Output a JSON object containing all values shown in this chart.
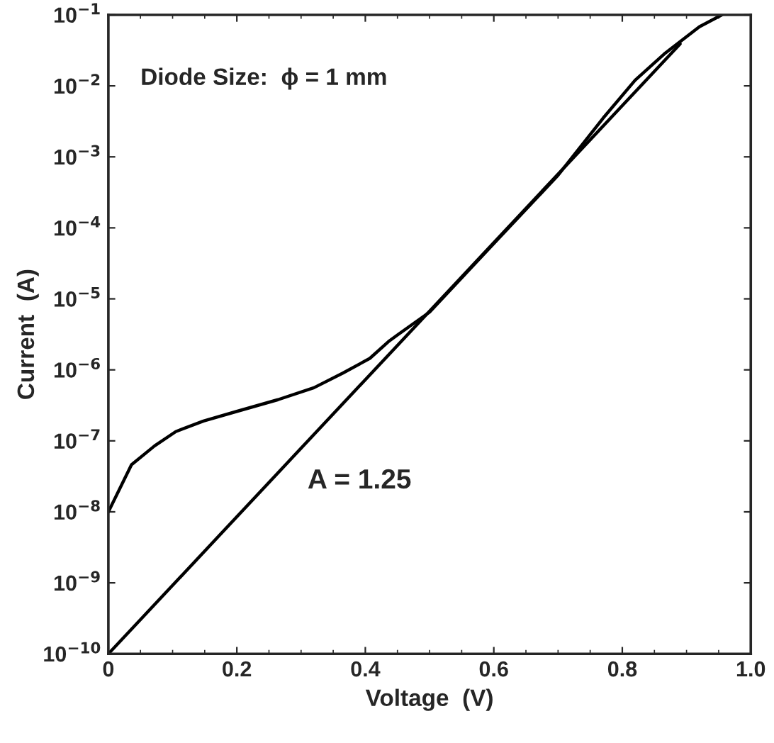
{
  "chart_data": {
    "type": "line",
    "xlabel": "Voltage  (V)",
    "ylabel": "Current  (A)",
    "log": "y",
    "xlim": [
      0,
      1.0
    ],
    "ylim": [
      1e-10,
      0.1
    ],
    "xticks": [
      {
        "value": 0,
        "label": "0"
      },
      0.2,
      0.4,
      0.6,
      0.8,
      {
        "value": 1.0,
        "label": "1.0"
      }
    ],
    "yticks": [
      {
        "value": 1e-10,
        "label": "10$^{−10}$"
      },
      {
        "value": 1e-09,
        "label": "10$^{−9}$"
      },
      {
        "value": 1e-08,
        "label": "10$^{−8}$"
      },
      {
        "value": 1e-07,
        "label": "10$^{−7}$"
      },
      {
        "value": 1e-06,
        "label": "10$^{−6}$"
      },
      {
        "value": 1e-05,
        "label": "10$^{−5}$"
      },
      {
        "value": 0.0001,
        "label": "10$^{−4}$"
      },
      {
        "value": 0.001,
        "label": "10$^{−3}$"
      },
      {
        "value": 0.01,
        "label": "10$^{−2}$"
      },
      {
        "value": 0.1,
        "label": "10$^{−1}$"
      }
    ],
    "grid": false,
    "marker": "none",
    "line_style": "solid",
    "series": [
      {
        "color": "#000000",
        "x": [
          0,
          0.036,
          0.072,
          0.105,
          0.148,
          0.2,
          0.264,
          0.32,
          0.365,
          0.407,
          0.436,
          0.45,
          0.5,
          0.6,
          0.7,
          0.77,
          0.82,
          0.865,
          0.92,
          0.955
        ],
        "values": [
          1e-08,
          4.6e-08,
          8.5e-08,
          1.35e-07,
          1.9e-07,
          2.6e-07,
          3.8e-07,
          5.6e-07,
          9e-07,
          1.45e-06,
          2.5e-06,
          3.1e-06,
          6.5e-06,
          6e-05,
          0.00055,
          0.0035,
          0.012,
          0.028,
          0.068,
          0.1
        ]
      },
      {
        "color": "#000000",
        "x": [
          0,
          0.89
        ],
        "values": [
          1e-10,
          0.039
        ]
      }
    ],
    "annotations": [
      "Diode Size:  ϕ = 1 mm",
      "A = 1.25"
    ]
  }
}
